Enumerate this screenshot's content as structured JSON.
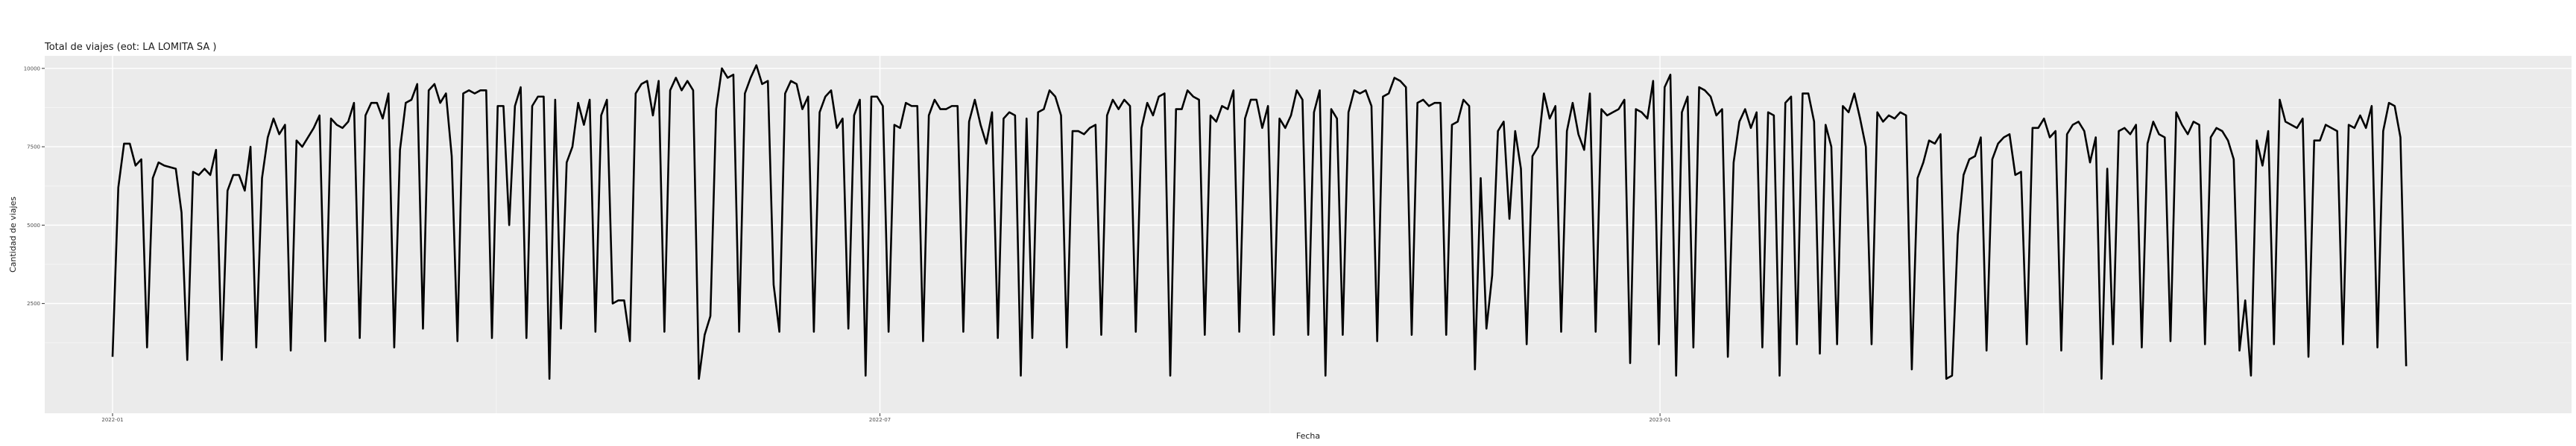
{
  "chart_data": {
    "type": "line",
    "title": "Total de viajes (eot: LA LOMITA SA )",
    "xlabel": "Fecha",
    "ylabel": "Cantidad de viajes",
    "x_ticks": [
      "2022-01",
      "2022-07",
      "2023-01"
    ],
    "y_ticks": [
      2500,
      5000,
      7500,
      10000
    ],
    "y_tick_labels": [
      "2500",
      "5000",
      "7500",
      "10000"
    ],
    "xlim": [
      "2021-12-16",
      "2023-08-04"
    ],
    "ylim": [
      -1000,
      10400
    ],
    "grid": true,
    "start_date": "2022-01-01",
    "end_date": "2023-06-26",
    "series": [
      {
        "name": "",
        "color": "#000000",
        "values": [
          800,
          6200,
          7600,
          7600,
          6900,
          7100,
          1100,
          6500,
          7000,
          6900,
          6850,
          6800,
          5400,
          700,
          6700,
          6600,
          6800,
          6600,
          7400,
          700,
          6100,
          6600,
          6600,
          6100,
          7500,
          1100,
          6500,
          7800,
          8400,
          7900,
          8200,
          1000,
          7700,
          7500,
          7800,
          8100,
          8500,
          1300,
          8400,
          8200,
          8100,
          8300,
          8900,
          1400,
          8500,
          8900,
          8900,
          8400,
          9200,
          1100,
          7400,
          8900,
          9000,
          9500,
          1700,
          9300,
          9500,
          8900,
          9200,
          7200,
          1300,
          9200,
          9300,
          9200,
          9300,
          9300,
          1400,
          8800,
          8800,
          5000,
          8800,
          9400,
          1400,
          8800,
          9100,
          9100,
          100,
          9000,
          1700,
          7000,
          7500,
          8900,
          8200,
          9000,
          1600,
          8500,
          9000,
          2500,
          2600,
          2600,
          1300,
          9200,
          9500,
          9600,
          8500,
          9600,
          1600,
          9300,
          9700,
          9300,
          9600,
          9300,
          100,
          1500,
          2100,
          8700,
          10000,
          9700,
          9800,
          1600,
          9200,
          9700,
          10100,
          9500,
          9600,
          3100,
          1600,
          9200,
          9600,
          9500,
          8700,
          9100,
          1600,
          8600,
          9100,
          9300,
          8100,
          8400,
          1700,
          8500,
          9000,
          200,
          9100,
          9100,
          8800,
          1600,
          8200,
          8100,
          8900,
          8800,
          8800,
          1300,
          8500,
          9000,
          8700,
          8700,
          8800,
          8800,
          1600,
          8300,
          9000,
          8200,
          7600,
          8600,
          1400,
          8400,
          8600,
          8500,
          200,
          8400,
          1400,
          8600,
          8700,
          9300,
          9100,
          8500,
          1100,
          8000,
          8000,
          7900,
          8100,
          8200,
          1500,
          8500,
          9000,
          8700,
          9000,
          8800,
          1600,
          8100,
          8900,
          8500,
          9100,
          9200,
          200,
          8700,
          8700,
          9300,
          9100,
          9000,
          1500,
          8500,
          8300,
          8800,
          8700,
          9300,
          1600,
          8400,
          9000,
          9000,
          8100,
          8800,
          1500,
          8400,
          8100,
          8500,
          9300,
          9000,
          1500,
          8600,
          9300,
          200,
          8700,
          8400,
          1500,
          8600,
          9300,
          9200,
          9300,
          8800,
          1300,
          9100,
          9200,
          9700,
          9600,
          9400,
          1500,
          8900,
          9000,
          8800,
          8900,
          8900,
          1500,
          8200,
          8300,
          9000,
          8800,
          400,
          6500,
          1700,
          3400,
          8000,
          8300,
          5200,
          8000,
          6800,
          1200,
          7200,
          7500,
          9200,
          8400,
          8800,
          1600,
          8000,
          8900,
          7900,
          7400,
          9200,
          1600,
          8700,
          8500,
          8600,
          8700,
          9000,
          600,
          8700,
          8600,
          8400,
          9600,
          1200,
          9400,
          9800,
          200,
          8600,
          9100,
          1100,
          9400,
          9300,
          9100,
          8500,
          8700,
          800,
          7000,
          8300,
          8700,
          8100,
          8600,
          1100,
          8600,
          8500,
          200,
          8900,
          9100,
          1200,
          9200,
          9200,
          8300,
          900,
          8200,
          7500,
          1200,
          8800,
          8600,
          9200,
          8400,
          7500,
          1200,
          8600,
          8300,
          8500,
          8400,
          8600,
          8500,
          400,
          6500,
          7000,
          7700,
          7600,
          7900,
          100,
          200,
          4700,
          6600,
          7100,
          7200,
          7800,
          1000,
          7100,
          7600,
          7800,
          7900,
          6600,
          6700,
          1200,
          8100,
          8100,
          8400,
          7800,
          8000,
          1000,
          7900,
          8200,
          8300,
          8000,
          7000,
          7800,
          100,
          6800,
          1200,
          8000,
          8100,
          7900,
          8200,
          1100,
          7600,
          8300,
          7900,
          7800,
          1300,
          8600,
          8200,
          7900,
          8300,
          8200,
          1200,
          7800,
          8100,
          8000,
          7700,
          7100,
          1000,
          2600,
          200,
          7700,
          6900,
          8000,
          1200,
          9000,
          8300,
          8200,
          8100,
          8400,
          800,
          7700,
          7700,
          8200,
          8100,
          8000,
          1200,
          8200,
          8100,
          8500,
          8100,
          8800,
          1100,
          8000,
          8900,
          8800,
          7800,
          500
        ]
      }
    ]
  }
}
